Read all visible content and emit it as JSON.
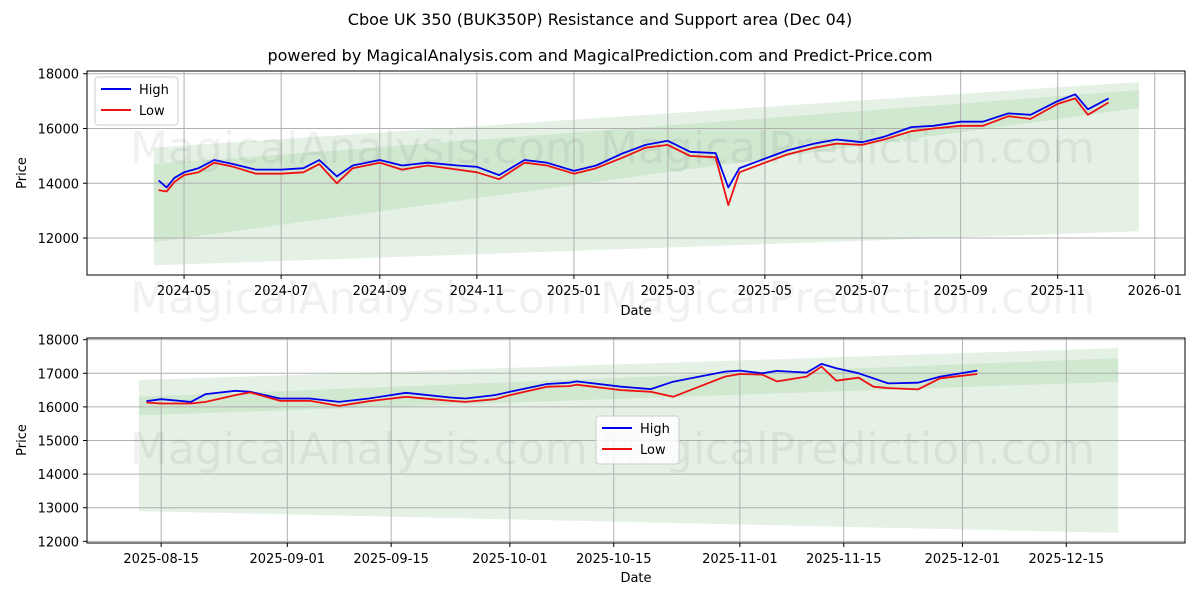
{
  "title": "Cboe UK 350 (BUK350P) Resistance and Support area (Dec 04)",
  "subtitle": "powered by MagicalAnalysis.com and MagicalPrediction.com and Predict-Price.com",
  "watermarks": [
    "MagicalAnalysis.com",
    "MagicalPrediction.com"
  ],
  "colors": {
    "high": "#0000ee",
    "low": "#ee1111",
    "band_outer": "#e3f0e3",
    "band_inner": "#c9e3c9",
    "grid": "#b0b0b0"
  },
  "legend": {
    "high_label": "High",
    "low_label": "Low"
  },
  "chart_data": [
    {
      "type": "line",
      "title": "Cboe UK 350 (BUK350P) Resistance and Support area (Dec 04) - full history",
      "xlabel": "Date",
      "ylabel": "Price",
      "ylim": [
        10650,
        18100
      ],
      "xlim": [
        "2024-03-01",
        "2026-01-20"
      ],
      "grid": true,
      "legend_position": "upper left",
      "x_ticks": [
        "2024-05",
        "2024-07",
        "2024-09",
        "2024-11",
        "2025-01",
        "2025-03",
        "2025-05",
        "2025-07",
        "2025-09",
        "2025-11",
        "2026-01"
      ],
      "y_ticks": [
        12000,
        14000,
        16000,
        18000
      ],
      "x": [
        "2024-04-15",
        "2024-04-20",
        "2024-04-25",
        "2024-05-01",
        "2024-05-10",
        "2024-05-20",
        "2024-06-01",
        "2024-06-15",
        "2024-07-01",
        "2024-07-15",
        "2024-07-25",
        "2024-08-05",
        "2024-08-15",
        "2024-09-01",
        "2024-09-15",
        "2024-10-01",
        "2024-10-20",
        "2024-11-01",
        "2024-11-15",
        "2024-12-01",
        "2024-12-15",
        "2025-01-01",
        "2025-01-15",
        "2025-02-01",
        "2025-02-15",
        "2025-03-01",
        "2025-03-15",
        "2025-03-31",
        "2025-04-08",
        "2025-04-15",
        "2025-05-01",
        "2025-05-15",
        "2025-06-01",
        "2025-06-15",
        "2025-07-01",
        "2025-07-15",
        "2025-08-01",
        "2025-08-15",
        "2025-09-01",
        "2025-09-15",
        "2025-10-01",
        "2025-10-15",
        "2025-11-01",
        "2025-11-12",
        "2025-11-20",
        "2025-12-03"
      ],
      "series": [
        {
          "name": "High",
          "values": [
            14100,
            13850,
            14200,
            14400,
            14550,
            14850,
            14700,
            14500,
            14500,
            14550,
            14850,
            14250,
            14650,
            14850,
            14650,
            14750,
            14650,
            14600,
            14300,
            14850,
            14750,
            14450,
            14650,
            15100,
            15400,
            15550,
            15150,
            15100,
            13850,
            14550,
            14900,
            15200,
            15450,
            15600,
            15500,
            15700,
            16050,
            16100,
            16250,
            16250,
            16550,
            16500,
            17000,
            17250,
            16700,
            17100
          ]
        },
        {
          "name": "Low",
          "values": [
            13750,
            13700,
            14050,
            14300,
            14400,
            14750,
            14600,
            14350,
            14350,
            14400,
            14700,
            14000,
            14550,
            14750,
            14500,
            14650,
            14500,
            14400,
            14150,
            14750,
            14650,
            14350,
            14550,
            14950,
            15300,
            15400,
            15000,
            14950,
            13200,
            14400,
            14750,
            15050,
            15300,
            15450,
            15400,
            15600,
            15900,
            16000,
            16100,
            16100,
            16450,
            16350,
            16900,
            17100,
            16500,
            16950
          ]
        },
        {
          "name": "Resistance/Support outer band",
          "x": [
            "2024-04-12",
            "2025-12-22"
          ],
          "upper": [
            15300,
            17700
          ],
          "lower": [
            11000,
            12250
          ]
        },
        {
          "name": "Resistance/Support inner band",
          "x": [
            "2024-04-12",
            "2025-12-22"
          ],
          "upper": [
            14700,
            17400
          ],
          "lower": [
            11850,
            16750
          ]
        }
      ]
    },
    {
      "type": "line",
      "title": "Cboe UK 350 (BUK350P) Resistance and Support area (Dec 04) - recent",
      "xlabel": "Date",
      "ylabel": "Price",
      "ylim": [
        11950,
        18050
      ],
      "xlim": [
        "2025-08-05",
        "2025-12-31"
      ],
      "grid": true,
      "legend_position": "center",
      "x_ticks": [
        "2025-08-15",
        "2025-09-01",
        "2025-09-15",
        "2025-10-01",
        "2025-10-15",
        "2025-11-01",
        "2025-11-15",
        "2025-12-01",
        "2025-12-15"
      ],
      "y_ticks": [
        12000,
        13000,
        14000,
        15000,
        16000,
        17000,
        18000
      ],
      "x": [
        "2025-08-13",
        "2025-08-15",
        "2025-08-19",
        "2025-08-21",
        "2025-08-25",
        "2025-08-27",
        "2025-08-31",
        "2025-09-04",
        "2025-09-08",
        "2025-09-12",
        "2025-09-17",
        "2025-09-23",
        "2025-09-25",
        "2025-09-29",
        "2025-10-01",
        "2025-10-06",
        "2025-10-09",
        "2025-10-10",
        "2025-10-16",
        "2025-10-20",
        "2025-10-23",
        "2025-10-30",
        "2025-11-01",
        "2025-11-04",
        "2025-11-06",
        "2025-11-10",
        "2025-11-12",
        "2025-11-14",
        "2025-11-17",
        "2025-11-19",
        "2025-11-21",
        "2025-11-25",
        "2025-11-28",
        "2025-12-03"
      ],
      "series": [
        {
          "name": "High",
          "values": [
            16170,
            16230,
            16150,
            16380,
            16480,
            16450,
            16250,
            16250,
            16150,
            16250,
            16420,
            16280,
            16250,
            16350,
            16450,
            16680,
            16720,
            16760,
            16600,
            16530,
            16750,
            17050,
            17080,
            17000,
            17070,
            17020,
            17280,
            17150,
            17000,
            16850,
            16700,
            16720,
            16900,
            17080
          ]
        },
        {
          "name": "Low",
          "values": [
            16130,
            16100,
            16100,
            16150,
            16350,
            16430,
            16180,
            16180,
            16030,
            16170,
            16300,
            16180,
            16150,
            16230,
            16350,
            16600,
            16620,
            16660,
            16500,
            16450,
            16300,
            16900,
            16980,
            16960,
            16760,
            16900,
            17200,
            16780,
            16870,
            16600,
            16560,
            16520,
            16850,
            16980
          ]
        },
        {
          "name": "Resistance/Support outer band",
          "x": [
            "2025-08-12",
            "2025-12-22"
          ],
          "upper": [
            16800,
            17750
          ],
          "lower": [
            12900,
            12250
          ]
        },
        {
          "name": "Resistance/Support inner band",
          "x": [
            "2025-08-12",
            "2025-12-22"
          ],
          "upper": [
            16300,
            17450
          ],
          "lower": [
            15750,
            16750
          ]
        }
      ]
    }
  ]
}
